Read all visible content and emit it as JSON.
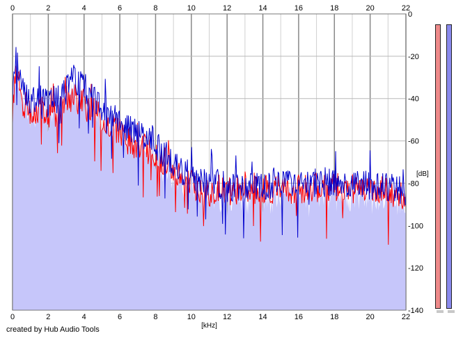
{
  "chart_data": {
    "type": "area",
    "title": "",
    "xlabel": "[kHz]",
    "ylabel": "[dB]",
    "xlim": [
      0,
      22
    ],
    "ylim": [
      -140,
      0
    ],
    "x_ticks": [
      "0",
      "2",
      "4",
      "6",
      "8",
      "10",
      "12",
      "14",
      "16",
      "18",
      "20",
      "22"
    ],
    "y_ticks": [
      "0",
      "-20",
      "-40",
      "-60",
      "-80",
      "-100",
      "-120",
      "-140"
    ],
    "grid": true,
    "fill_color": "#c6c6fa",
    "series": [
      {
        "color": "#ff0000",
        "x": [
          0,
          0.2,
          0.4,
          0.6,
          0.8,
          1,
          1.5,
          2,
          2.5,
          3,
          3.5,
          4,
          4.5,
          5,
          5.5,
          6,
          6.5,
          7,
          7.5,
          8,
          8.5,
          9,
          9.5,
          10,
          10.5,
          11,
          11.5,
          12,
          13,
          14,
          15,
          16,
          17,
          18,
          19,
          20,
          21,
          22
        ],
        "y": [
          -48,
          -28,
          -36,
          -44,
          -46,
          -48,
          -45,
          -48,
          -46,
          -42,
          -40,
          -42,
          -46,
          -50,
          -52,
          -56,
          -60,
          -62,
          -64,
          -66,
          -70,
          -74,
          -78,
          -80,
          -82,
          -84,
          -84,
          -84,
          -84,
          -83,
          -83,
          -83,
          -82,
          -82,
          -82,
          -83,
          -84,
          -86
        ]
      },
      {
        "color": "#0000cc",
        "x": [
          0,
          0.2,
          0.4,
          0.6,
          0.8,
          1,
          1.5,
          2,
          2.5,
          3,
          3.5,
          4,
          4.5,
          5,
          5.5,
          6,
          6.5,
          7,
          7.5,
          8,
          8.5,
          9,
          9.5,
          10,
          10.5,
          11,
          11.5,
          12,
          13,
          14,
          15,
          16,
          17,
          18,
          19,
          20,
          21,
          22
        ],
        "y": [
          -40,
          -20,
          -30,
          -36,
          -40,
          -42,
          -40,
          -42,
          -40,
          -36,
          -30,
          -36,
          -40,
          -44,
          -46,
          -50,
          -54,
          -56,
          -58,
          -62,
          -66,
          -70,
          -74,
          -76,
          -78,
          -80,
          -80,
          -82,
          -82,
          -81,
          -81,
          -81,
          -80,
          -80,
          -80,
          -81,
          -82,
          -84
        ]
      }
    ]
  },
  "footer": {
    "credit": "created by Hub Audio Tools"
  },
  "meters": [
    {
      "color": "#ee8a8a"
    },
    {
      "color": "#8a8aee"
    }
  ]
}
